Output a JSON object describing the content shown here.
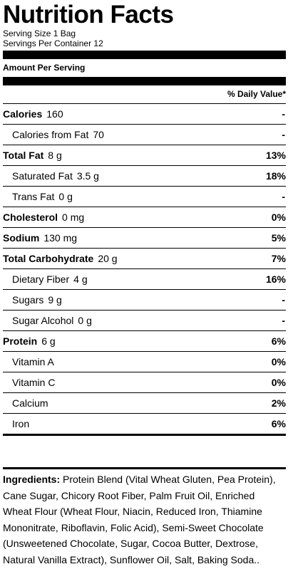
{
  "title": "Nutrition Facts",
  "serving_size": "Serving Size 1 Bag",
  "servings_per_container": "Servings Per Container 12",
  "amount_per_serving": "Amount Per Serving",
  "daily_value_header": "% Daily Value*",
  "rows": [
    {
      "name": "Calories",
      "amount": "160",
      "dv": "-",
      "bold": true,
      "indent": false
    },
    {
      "name": "Calories from Fat",
      "amount": "70",
      "dv": "-",
      "bold": false,
      "indent": true
    },
    {
      "name": "Total Fat",
      "amount": "8 g",
      "dv": "13%",
      "bold": true,
      "indent": false
    },
    {
      "name": "Saturated Fat",
      "amount": "3.5 g",
      "dv": "18%",
      "bold": false,
      "indent": true
    },
    {
      "name": "Trans Fat",
      "amount": "0 g",
      "dv": "-",
      "bold": false,
      "indent": true
    },
    {
      "name": "Cholesterol",
      "amount": "0 mg",
      "dv": "0%",
      "bold": true,
      "indent": false
    },
    {
      "name": "Sodium",
      "amount": "130 mg",
      "dv": "5%",
      "bold": true,
      "indent": false
    },
    {
      "name": "Total Carbohydrate",
      "amount": "20 g",
      "dv": "7%",
      "bold": true,
      "indent": false
    },
    {
      "name": "Dietary Fiber",
      "amount": "4 g",
      "dv": "16%",
      "bold": false,
      "indent": true
    },
    {
      "name": "Sugars",
      "amount": "9 g",
      "dv": "-",
      "bold": false,
      "indent": true
    },
    {
      "name": "Sugar Alcohol",
      "amount": "0 g",
      "dv": "-",
      "bold": false,
      "indent": true
    },
    {
      "name": "Protein",
      "amount": "6 g",
      "dv": "6%",
      "bold": true,
      "indent": false
    },
    {
      "name": "Vitamin A",
      "amount": "",
      "dv": "0%",
      "bold": false,
      "indent": true
    },
    {
      "name": "Vitamin C",
      "amount": "",
      "dv": "0%",
      "bold": false,
      "indent": true
    },
    {
      "name": "Calcium",
      "amount": "",
      "dv": "2%",
      "bold": false,
      "indent": true
    },
    {
      "name": "Iron",
      "amount": "",
      "dv": "6%",
      "bold": false,
      "indent": true
    }
  ],
  "ingredients_label": "Ingredients:",
  "ingredients_text": " Protein Blend (Vital Wheat Gluten, Pea Protein), Cane Sugar, Chicory Root Fiber, Palm Fruit Oil, Enriched Wheat Flour (Wheat Flour, Niacin, Reduced Iron, Thiamine Mononitrate, Riboflavin, Folic Acid), Semi-Sweet Chocolate (Unsweetened Chocolate, Sugar, Cocoa Butter, Dextrose, Natural Vanilla Extract), Sunflower Oil, Salt, Baking Soda.."
}
